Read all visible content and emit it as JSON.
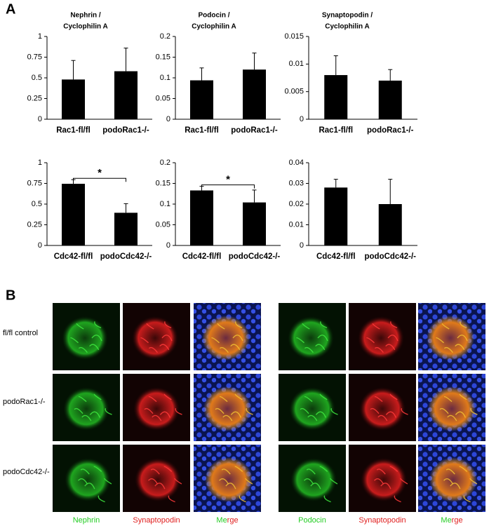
{
  "panel_labels": [
    "A",
    "B"
  ],
  "chart_data": [
    {
      "type": "bar",
      "title": [
        "Nephrin /",
        "Cyclophilin A"
      ],
      "categories": [
        "Rac1-fl/fl",
        "podoRac1-/-"
      ],
      "values": [
        0.48,
        0.58
      ],
      "errors": [
        0.23,
        0.28
      ],
      "color": "#000000",
      "ylim": [
        0,
        1
      ],
      "yticks": [
        0,
        0.25,
        0.5,
        0.75,
        1
      ]
    },
    {
      "type": "bar",
      "title": [
        "Podocin /",
        "Cyclophilin A"
      ],
      "categories": [
        "Rac1-fl/fl",
        "podoRac1-/-"
      ],
      "values": [
        0.094,
        0.12
      ],
      "errors": [
        0.03,
        0.04
      ],
      "color": "#000000",
      "ylim": [
        0,
        0.2
      ],
      "yticks": [
        0,
        0.05,
        0.1,
        0.15,
        0.2
      ]
    },
    {
      "type": "bar",
      "title": [
        "Synaptopodin /",
        "Cyclophilin A"
      ],
      "categories": [
        "Rac1-fl/fl",
        "podoRac1-/-"
      ],
      "values": [
        0.008,
        0.007
      ],
      "errors": [
        0.0035,
        0.002
      ],
      "color": "#000000",
      "ylim": [
        0,
        0.015
      ],
      "yticks": [
        0,
        0.005,
        0.01,
        0.015
      ]
    },
    {
      "type": "bar",
      "categories": [
        "Cdc42-fl/fl",
        "podoCdc42-/-"
      ],
      "values": [
        0.745,
        0.395
      ],
      "errors": [
        0.05,
        0.11
      ],
      "color": "#000000",
      "ylim": [
        0,
        1
      ],
      "yticks": [
        0,
        0.25,
        0.5,
        0.75,
        1
      ],
      "annotation": "*"
    },
    {
      "type": "bar",
      "categories": [
        "Cdc42-fl/fl",
        "podoCdc42-/-"
      ],
      "values": [
        0.133,
        0.104
      ],
      "errors": [
        0.01,
        0.03
      ],
      "color": "#000000",
      "ylim": [
        0,
        0.2
      ],
      "yticks": [
        0,
        0.05,
        0.1,
        0.15,
        0.2
      ],
      "annotation": "*"
    },
    {
      "type": "bar",
      "categories": [
        "Cdc42-fl/fl",
        "podoCdc42-/-"
      ],
      "values": [
        0.028,
        0.02
      ],
      "errors": [
        0.004,
        0.012
      ],
      "color": "#000000",
      "ylim": [
        0,
        0.04
      ],
      "yticks": [
        0,
        0.01,
        0.02,
        0.03,
        0.04
      ]
    }
  ],
  "microscopy": {
    "row_labels": [
      "fl/fl control",
      "podoRac1-/-",
      "podoCdc42-/-"
    ],
    "left_channels": [
      "Nephrin",
      "Synaptopodin",
      "Merge"
    ],
    "right_channels": [
      "Podocin",
      "Synaptopodin",
      "Merge"
    ]
  }
}
